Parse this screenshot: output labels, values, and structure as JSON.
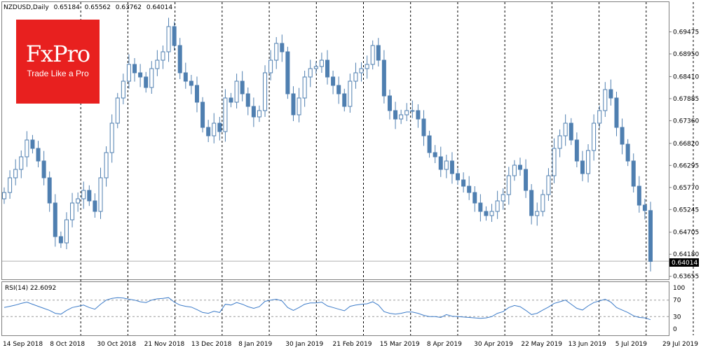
{
  "header": {
    "symbol": "NZDUSD,Daily",
    "open": "0.65184",
    "high": "0.65562",
    "low": "0.63762",
    "close": "0.64014"
  },
  "logo": {
    "brand": "FxPro",
    "tagline": "Trade Like a Pro"
  },
  "indicator": {
    "label": "RSI(14) 22.6092"
  },
  "colors": {
    "candle": "#4f7fb0",
    "rsi": "#3d7cc9",
    "price_line": "#b0b0b0",
    "grid_dash": "#000000",
    "frame": "#808080",
    "logo_bg": "#e8201f"
  },
  "chart_data": [
    {
      "type": "candlestick",
      "price_axis_ticks": [
        "0.69475",
        "0.68950",
        "0.68410",
        "0.67885",
        "0.67360",
        "0.66820",
        "0.66295",
        "0.65770",
        "0.65245",
        "0.64705",
        "0.64180",
        "0.63655"
      ],
      "current_price_label": "0.64014",
      "ylim": [
        0.636,
        0.699
      ],
      "date_labels": [
        "14 Sep 2018",
        "8 Oct 2018",
        "30 Oct 2018",
        "21 Nov 2018",
        "13 Dec 2018",
        "8 Jan 2019",
        "30 Jan 2019",
        "21 Feb 2019",
        "15 Mar 2019",
        "8 Apr 2019",
        "30 Apr 2019",
        "22 May 2019",
        "13 Jun 2019",
        "5 Jul 2019",
        "29 Jul 2019"
      ],
      "closes": [
        0.6565,
        0.66,
        0.662,
        0.665,
        0.669,
        0.667,
        0.664,
        0.66,
        0.654,
        0.646,
        0.6445,
        0.65,
        0.654,
        0.655,
        0.657,
        0.6545,
        0.652,
        0.66,
        0.666,
        0.673,
        0.679,
        0.683,
        0.687,
        0.685,
        0.684,
        0.6815,
        0.686,
        0.688,
        0.69,
        0.696,
        0.6915,
        0.685,
        0.683,
        0.682,
        0.678,
        0.672,
        0.67,
        0.673,
        0.671,
        0.679,
        0.678,
        0.683,
        0.68,
        0.677,
        0.6745,
        0.676,
        0.685,
        0.688,
        0.692,
        0.69,
        0.68,
        0.675,
        0.679,
        0.684,
        0.686,
        0.6865,
        0.688,
        0.684,
        0.682,
        0.68,
        0.677,
        0.683,
        0.685,
        0.686,
        0.687,
        0.6915,
        0.688,
        0.6795,
        0.676,
        0.674,
        0.675,
        0.676,
        0.676,
        0.674,
        0.67,
        0.666,
        0.665,
        0.662,
        0.664,
        0.661,
        0.6595,
        0.658,
        0.6565,
        0.654,
        0.652,
        0.651,
        0.652,
        0.6545,
        0.656,
        0.6605,
        0.663,
        0.662,
        0.657,
        0.651,
        0.652,
        0.656,
        0.6605,
        0.667,
        0.67,
        0.673,
        0.669,
        0.664,
        0.661,
        0.6665,
        0.673,
        0.676,
        0.681,
        0.679,
        0.672,
        0.668,
        0.664,
        0.658,
        0.6535,
        0.6522,
        0.6401
      ],
      "rsi": {
        "period": 14,
        "last": 22.6092,
        "levels": [
          70,
          30
        ],
        "axis_ticks": [
          "100",
          "70",
          "30",
          "0"
        ],
        "values": [
          52,
          55,
          58,
          62,
          65,
          60,
          55,
          50,
          45,
          38,
          36,
          45,
          52,
          55,
          58,
          52,
          48,
          60,
          70,
          74,
          76,
          75,
          72,
          70,
          66,
          64,
          70,
          73,
          74,
          76,
          65,
          58,
          55,
          53,
          47,
          40,
          38,
          43,
          40,
          60,
          58,
          64,
          60,
          54,
          50,
          54,
          67,
          70,
          72,
          68,
          52,
          45,
          52,
          60,
          63,
          63,
          65,
          56,
          52,
          48,
          44,
          55,
          58,
          60,
          61,
          66,
          58,
          42,
          38,
          36,
          38,
          41,
          41,
          38,
          33,
          30,
          30,
          28,
          35,
          31,
          30,
          29,
          28,
          27,
          26,
          27,
          30,
          38,
          42,
          52,
          57,
          54,
          45,
          35,
          38,
          46,
          53,
          62,
          66,
          70,
          60,
          50,
          46,
          56,
          64,
          68,
          72,
          65,
          52,
          46,
          40,
          32,
          28,
          27,
          22.6
        ]
      }
    }
  ]
}
